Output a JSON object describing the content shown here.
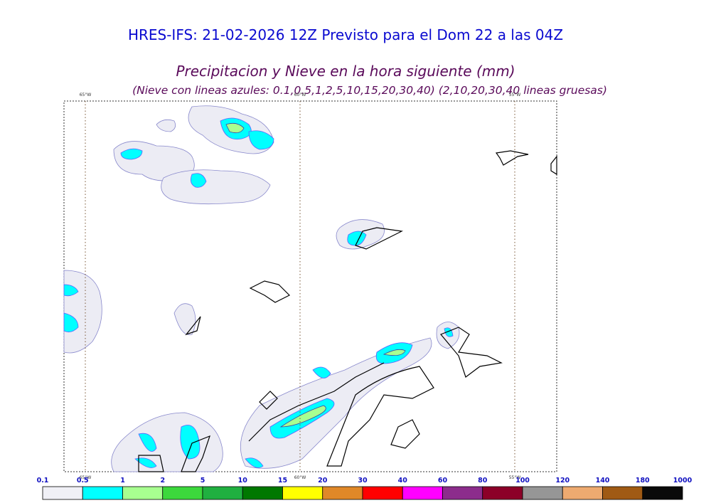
{
  "header": {
    "title": "HRES-IFS: 21-02-2026 12Z Previsto para el Dom 22 a las 04Z",
    "subtitle": "Precipitacion y Nieve en la hora siguiente (mm)",
    "note": "(Nieve con lineas azules: 0.1,0.5,1,2,5,10,15,20,30,40)  (2,10,20,30,40 lineas gruesas)"
  },
  "map": {
    "meridians": [
      "65°W",
      "60°W",
      "55°W"
    ]
  },
  "colorbar": {
    "labels": [
      "0.1",
      "0.5",
      "1",
      "2",
      "5",
      "10",
      "15",
      "20",
      "30",
      "40",
      "60",
      "80",
      "100",
      "120",
      "140",
      "180",
      "1000"
    ],
    "colors": [
      "#f0f0f6",
      "#00ffff",
      "#a8ff90",
      "#3cd83c",
      "#20b040",
      "#007800",
      "#ffff00",
      "#e08828",
      "#ff0000",
      "#ff00ff",
      "#8c2c8c",
      "#8c0028",
      "#969696",
      "#eeaa70",
      "#a05a14",
      "#0a0a0a"
    ]
  }
}
